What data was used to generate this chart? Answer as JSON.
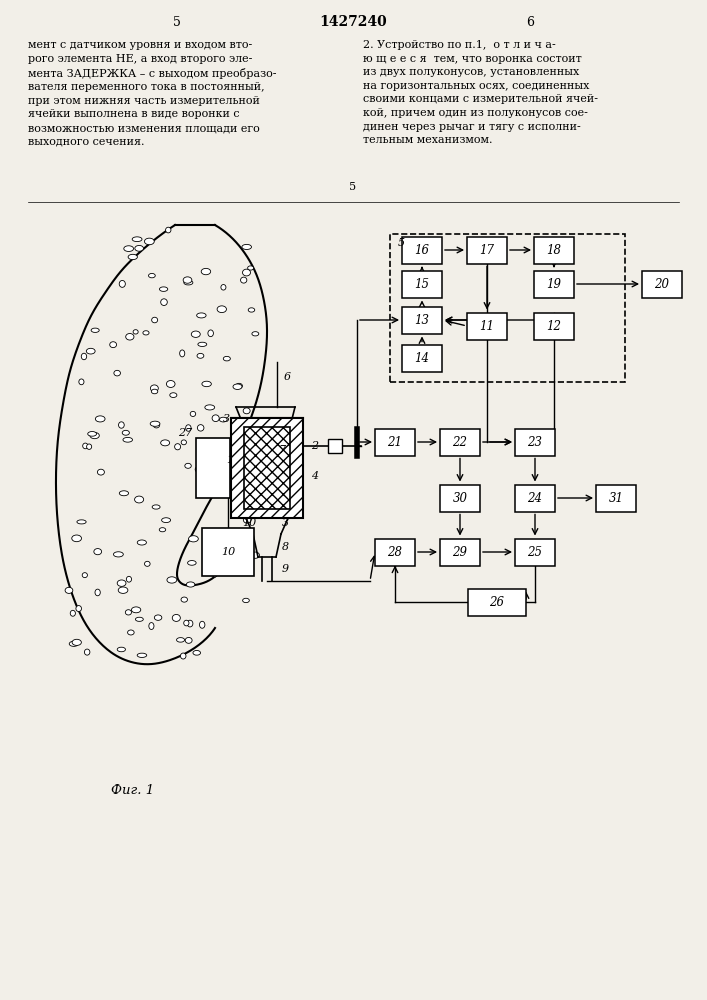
{
  "background": "#f2efe8",
  "title": "1427240",
  "fig_caption": "Фиг. 1",
  "left_text": "мент с датчиком уровня и входом вто-\nрого элемента НЕ, а вход второго эле-\nмента ЗАДЕРЖКА – с выходом преобразо-\nвателя переменного тока в постоянный,\nпри этом нижняя часть измерительной\nячейки выполнена в виде воронки с\nвозможностью изменения площади его\nвыходного сечения.",
  "right_text": "2. Устройство по п.1,  о т л и ч а-\nю щ е е с я  тем, что воронка состоит\nиз двух полуконусов, установленных\nна горизонтальных осях, соединенных\nсвоими концами с измерительной ячей-\nкой, причем один из полуконусов сое-\nдинен через рычаг и тягу с исполни-\nтельным механизмом.",
  "page_left": "5",
  "page_right": "6"
}
